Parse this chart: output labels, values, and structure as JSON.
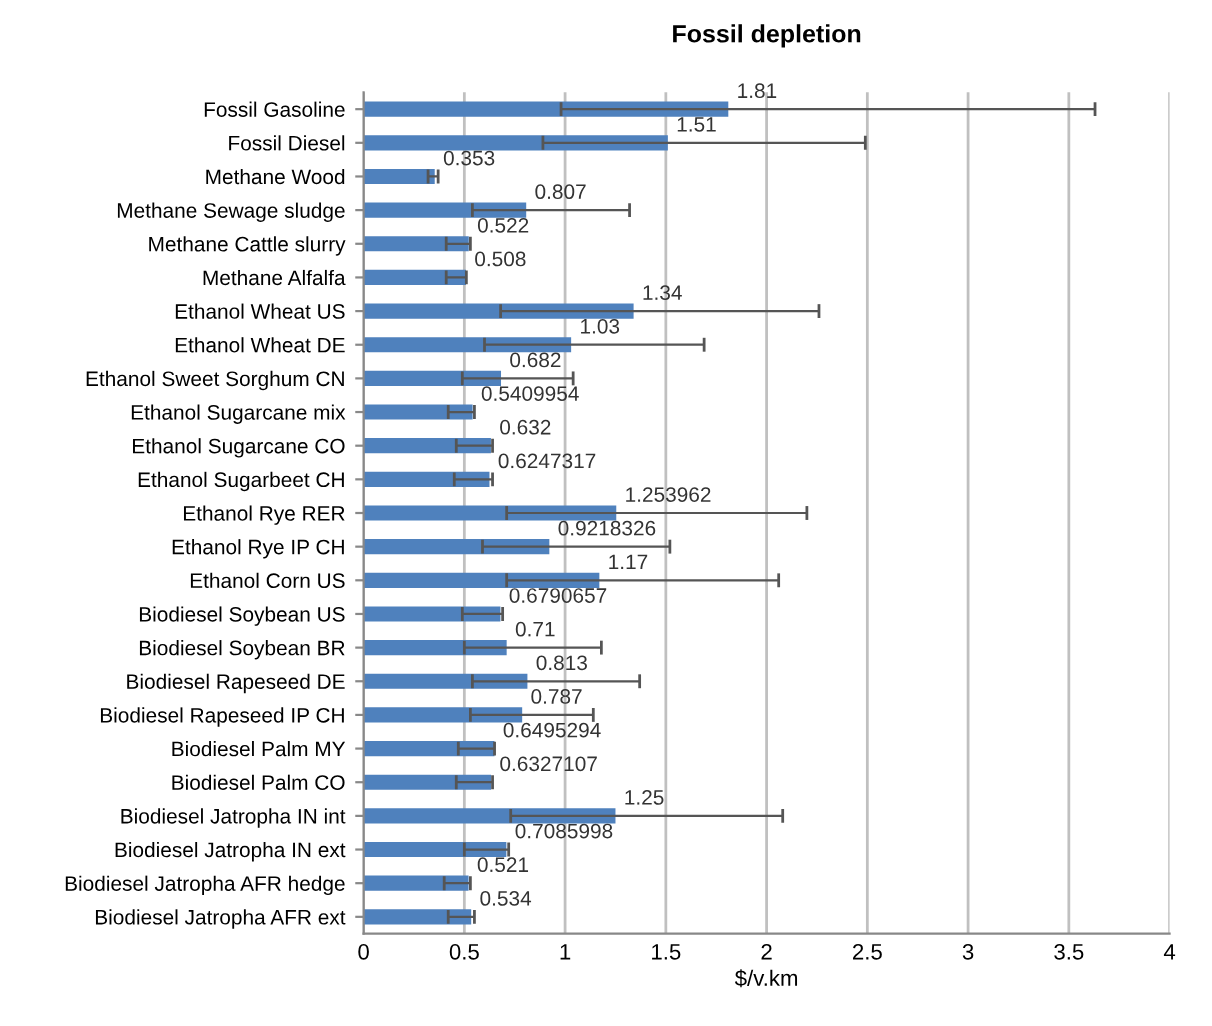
{
  "chart_data": {
    "type": "bar",
    "orientation": "horizontal",
    "title": "Fossil depletion",
    "xlabel": "$/v.km",
    "categories": [
      "Fossil Gasoline",
      "Fossil Diesel",
      "Methane Wood",
      "Methane Sewage sludge",
      "Methane Cattle slurry",
      "Methane Alfalfa",
      "Ethanol Wheat US",
      "Ethanol Wheat DE",
      "Ethanol Sweet Sorghum CN",
      "Ethanol Sugarcane mix",
      "Ethanol Sugarcane CO",
      "Ethanol Sugarbeet CH",
      "Ethanol Rye RER",
      "Ethanol Rye IP CH",
      "Ethanol Corn US",
      "Biodiesel Soybean US",
      "Biodiesel Soybean BR",
      "Biodiesel Rapeseed DE",
      "Biodiesel Rapeseed IP CH",
      "Biodiesel Palm MY",
      "Biodiesel Palm CO",
      "Biodiesel Jatropha IN int",
      "Biodiesel Jatropha IN ext",
      "Biodiesel Jatropha AFR hedge",
      "Biodiesel Jatropha AFR ext"
    ],
    "values": [
      1.81,
      1.51,
      0.353,
      0.807,
      0.522,
      0.508,
      1.34,
      1.03,
      0.682,
      0.5409954,
      0.632,
      0.6247317,
      1.253962,
      0.9218326,
      1.17,
      0.6790657,
      0.71,
      0.813,
      0.787,
      0.6495294,
      0.6327107,
      1.25,
      0.7085998,
      0.521,
      0.534
    ],
    "value_labels": [
      "1.81",
      "1.51",
      "0.353",
      "0.807",
      "0.522",
      "0.508",
      "1.34",
      "1.03",
      "0.682",
      "0.5409954",
      "0.632",
      "0.6247317",
      "1.253962",
      "0.9218326",
      "1.17",
      "0.6790657",
      "0.71",
      "0.813",
      "0.787",
      "0.6495294",
      "0.6327107",
      "1.25",
      "0.7085998",
      "0.521",
      "0.534"
    ],
    "errors": [
      [
        0.98,
        3.63
      ],
      [
        0.89,
        2.49
      ],
      [
        0.32,
        0.37
      ],
      [
        0.54,
        1.32
      ],
      [
        0.41,
        0.53
      ],
      [
        0.41,
        0.51
      ],
      [
        0.68,
        2.26
      ],
      [
        0.6,
        1.69
      ],
      [
        0.49,
        1.04
      ],
      [
        0.42,
        0.55
      ],
      [
        0.46,
        0.64
      ],
      [
        0.45,
        0.64
      ],
      [
        0.71,
        2.2
      ],
      [
        0.59,
        1.52
      ],
      [
        0.71,
        2.06
      ],
      [
        0.49,
        0.69
      ],
      [
        0.5,
        1.18
      ],
      [
        0.54,
        1.37
      ],
      [
        0.53,
        1.14
      ],
      [
        0.47,
        0.65
      ],
      [
        0.46,
        0.64
      ],
      [
        0.73,
        2.08
      ],
      [
        0.5,
        0.72
      ],
      [
        0.4,
        0.53
      ],
      [
        0.42,
        0.55
      ]
    ],
    "color": "#4f81bd",
    "xlim": [
      0,
      4
    ],
    "xticks": [
      0,
      0.5,
      1,
      1.5,
      2,
      2.5,
      3,
      3.5,
      4
    ],
    "grid": "x",
    "legend": false
  }
}
